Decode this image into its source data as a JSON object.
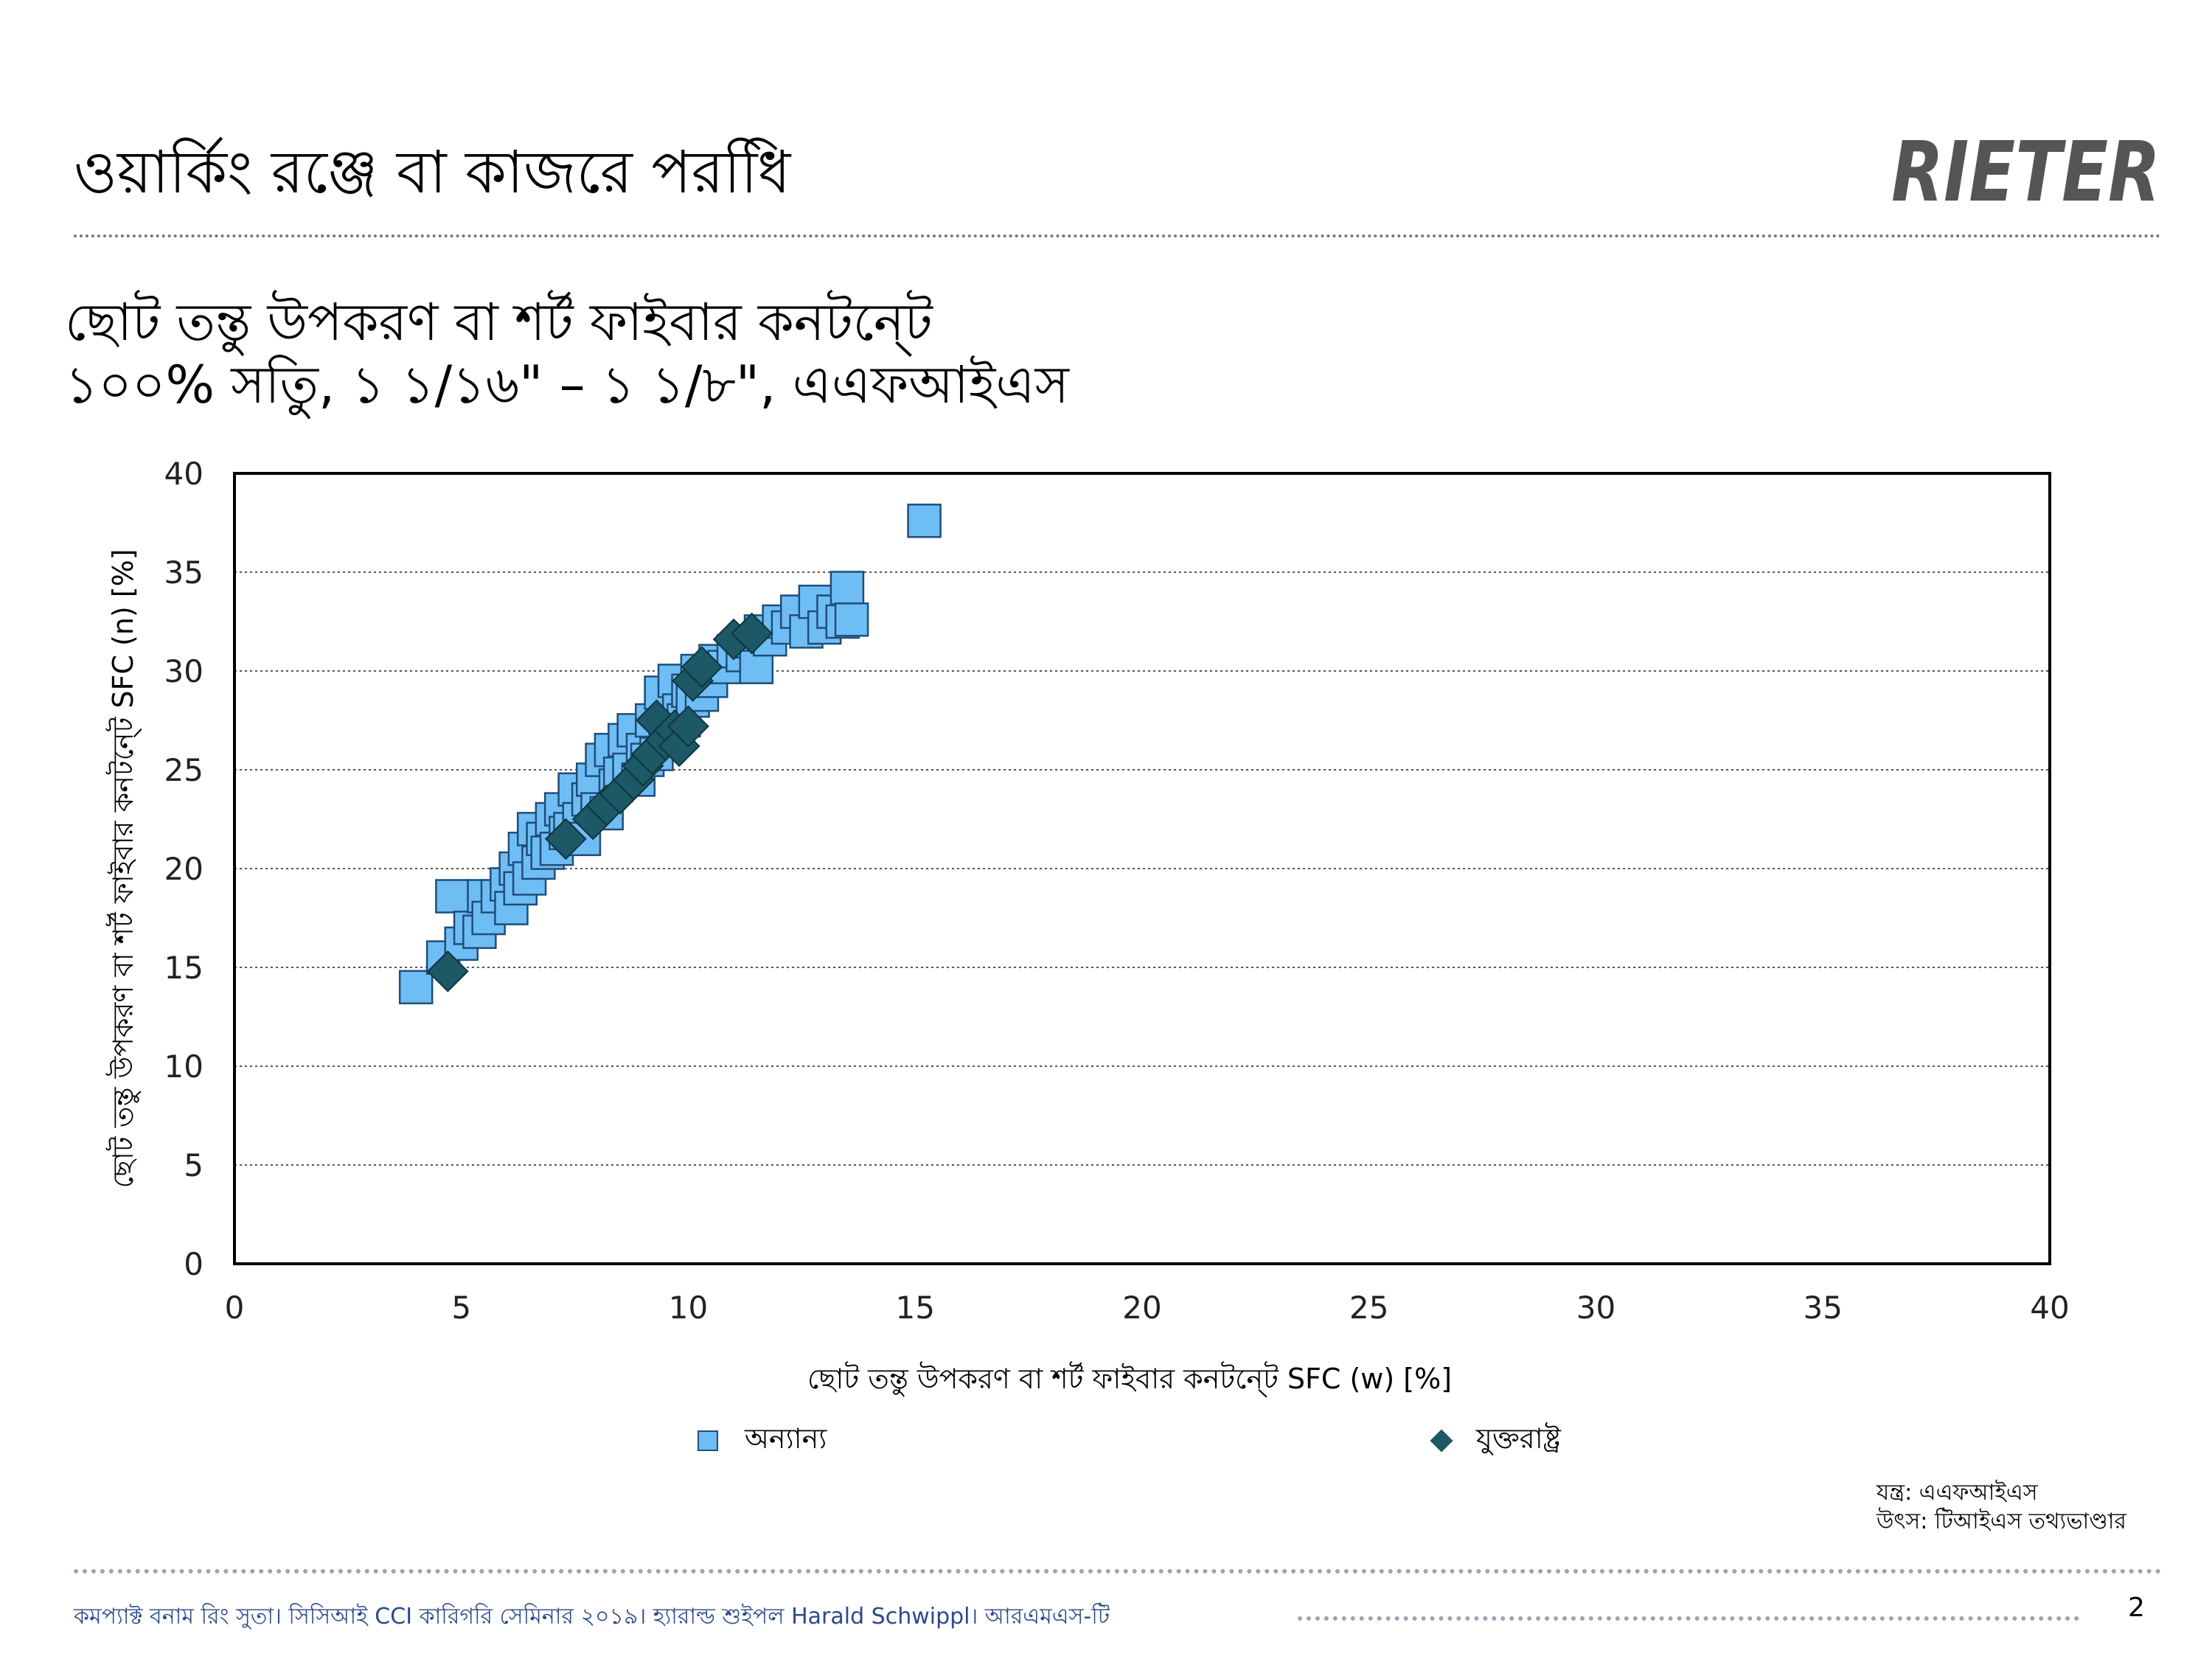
{
  "header": {
    "title": "ওয়ার্কিং রঞ্জে বা কাজরে পরধিি",
    "logo_text": "RIETER"
  },
  "subtitle": {
    "line1": "ছোট তন্তু উপকরণ বা শর্ট ফাইবার কনটনে্ট",
    "line2": "১০০% সতুি, ১ ১/১৬\" – ১ ১/৮\", এএফআইএস"
  },
  "chart_data": {
    "type": "scatter",
    "xlabel": "ছোট তন্তু উপকরণ বা শর্ট ফাইবার কনটনে্ট  SFC (w) [%]",
    "ylabel": "ছোট তন্তু উপকরণ বা শর্ট ফাইবার কনটনে্ট  SFC (n) [%]",
    "xlim": [
      0,
      40
    ],
    "ylim": [
      0,
      40
    ],
    "xticks": [
      "0",
      "5",
      "10",
      "15",
      "20",
      "25",
      "30",
      "35",
      "40"
    ],
    "yticks": [
      "0",
      "5",
      "10",
      "15",
      "20",
      "25",
      "30",
      "35",
      "40"
    ],
    "grid": "horizontal dotted",
    "legend_position": "bottom",
    "series": [
      {
        "name": "অন্যান্য",
        "marker": "square",
        "color": "#6fbdf5",
        "points": [
          [
            4.0,
            14.0
          ],
          [
            4.6,
            15.5
          ],
          [
            4.8,
            18.6
          ],
          [
            5.0,
            16.2
          ],
          [
            5.2,
            17.0
          ],
          [
            5.4,
            16.8
          ],
          [
            5.5,
            18.6
          ],
          [
            5.6,
            17.5
          ],
          [
            5.8,
            18.6
          ],
          [
            6.0,
            19.2
          ],
          [
            6.1,
            18.0
          ],
          [
            6.2,
            20.0
          ],
          [
            6.3,
            19.0
          ],
          [
            6.4,
            21.0
          ],
          [
            6.5,
            19.5
          ],
          [
            6.6,
            22.0
          ],
          [
            6.7,
            20.3
          ],
          [
            6.8,
            21.5
          ],
          [
            6.9,
            20.8
          ],
          [
            7.0,
            22.5
          ],
          [
            7.1,
            21.0
          ],
          [
            7.2,
            23.0
          ],
          [
            7.3,
            21.8
          ],
          [
            7.4,
            22.0
          ],
          [
            7.5,
            24.0
          ],
          [
            7.6,
            22.5
          ],
          [
            7.7,
            21.5
          ],
          [
            7.8,
            23.5
          ],
          [
            7.9,
            24.5
          ],
          [
            8.0,
            23.0
          ],
          [
            8.1,
            25.5
          ],
          [
            8.2,
            22.8
          ],
          [
            8.3,
            26.0
          ],
          [
            8.4,
            24.2
          ],
          [
            8.5,
            24.8
          ],
          [
            8.6,
            26.5
          ],
          [
            8.7,
            25.0
          ],
          [
            8.8,
            27.0
          ],
          [
            8.9,
            24.5
          ],
          [
            9.0,
            26.0
          ],
          [
            9.1,
            25.5
          ],
          [
            9.2,
            27.5
          ],
          [
            9.3,
            25.8
          ],
          [
            9.4,
            28.9
          ],
          [
            9.5,
            26.8
          ],
          [
            9.6,
            27.2
          ],
          [
            9.7,
            29.5
          ],
          [
            9.8,
            28.0
          ],
          [
            9.9,
            27.5
          ],
          [
            10.0,
            29.0
          ],
          [
            10.1,
            28.5
          ],
          [
            10.2,
            30.0
          ],
          [
            10.3,
            28.8
          ],
          [
            10.5,
            29.5
          ],
          [
            10.6,
            30.5
          ],
          [
            10.8,
            30.2
          ],
          [
            11.0,
            31.0
          ],
          [
            11.2,
            30.8
          ],
          [
            11.4,
            31.5
          ],
          [
            11.5,
            30.2
          ],
          [
            11.6,
            32.0
          ],
          [
            11.8,
            31.6
          ],
          [
            12.0,
            32.5
          ],
          [
            12.2,
            32.2
          ],
          [
            12.4,
            33.0
          ],
          [
            12.6,
            32.0
          ],
          [
            12.8,
            33.5
          ],
          [
            13.0,
            32.2
          ],
          [
            13.2,
            33.0
          ],
          [
            13.4,
            32.5
          ],
          [
            13.5,
            34.2
          ],
          [
            13.6,
            32.6
          ],
          [
            15.2,
            37.6
          ]
        ]
      },
      {
        "name": "যুক্তরাষ্ট্র",
        "marker": "diamond",
        "color": "#1c5866",
        "points": [
          [
            4.7,
            14.8
          ],
          [
            7.3,
            21.5
          ],
          [
            7.9,
            22.5
          ],
          [
            8.2,
            23.2
          ],
          [
            8.5,
            23.8
          ],
          [
            8.8,
            24.5
          ],
          [
            9.0,
            25.2
          ],
          [
            9.2,
            25.8
          ],
          [
            9.3,
            27.5
          ],
          [
            9.5,
            26.5
          ],
          [
            9.7,
            27.0
          ],
          [
            9.8,
            26.2
          ],
          [
            10.0,
            27.2
          ],
          [
            10.1,
            29.5
          ],
          [
            10.3,
            30.2
          ],
          [
            11.0,
            31.6
          ],
          [
            11.4,
            31.9
          ]
        ]
      }
    ]
  },
  "notes": {
    "line1": "যন্ত্র: এএফআইএস",
    "line2": "উৎস: টিআইএস তথ্যভাণ্ডার"
  },
  "footer": {
    "text": "কমপ্যাক্ট বনাম রিং সুতা। সিসিআই CCI কারিগরি সেমিনার ২০১৯। হ্যারাল্ড শুইপল Harald Schwippl। আরএমএস-টি",
    "page_number": "2"
  }
}
